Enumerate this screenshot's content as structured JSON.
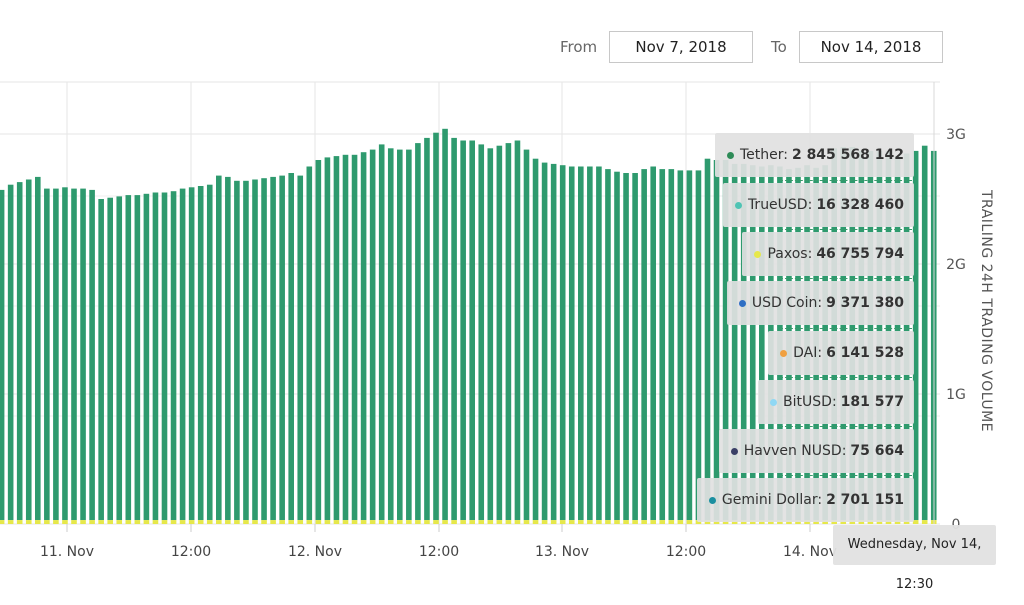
{
  "range": {
    "from_label": "From",
    "from_value": "Nov 7, 2018",
    "to_label": "To",
    "to_value": "Nov 14, 2018"
  },
  "chart_data": {
    "type": "bar",
    "stacked": true,
    "ylabel": "TRAILING 24H TRADING VOLUME",
    "ylim": [
      0,
      3400000000
    ],
    "yticks": [
      {
        "value": 0,
        "label": "0"
      },
      {
        "value": 1000000000,
        "label": "1G"
      },
      {
        "value": 2000000000,
        "label": "2G"
      },
      {
        "value": 3000000000,
        "label": "3G"
      }
    ],
    "xtick_labels": [
      "11. Nov",
      "12:00",
      "12. Nov",
      "12:00",
      "13. Nov",
      "12:00",
      "14. Nov"
    ],
    "colors": {
      "Tether": "#2e9a6e",
      "stablecoins": "#e6e84a"
    },
    "tether_values_billions": [
      2.54,
      2.58,
      2.6,
      2.62,
      2.64,
      2.55,
      2.55,
      2.56,
      2.55,
      2.55,
      2.54,
      2.47,
      2.48,
      2.49,
      2.5,
      2.5,
      2.51,
      2.52,
      2.52,
      2.53,
      2.55,
      2.56,
      2.57,
      2.58,
      2.65,
      2.64,
      2.61,
      2.61,
      2.62,
      2.63,
      2.64,
      2.65,
      2.67,
      2.65,
      2.72,
      2.77,
      2.79,
      2.8,
      2.81,
      2.81,
      2.83,
      2.85,
      2.89,
      2.86,
      2.85,
      2.85,
      2.9,
      2.94,
      2.98,
      3.01,
      2.94,
      2.92,
      2.92,
      2.89,
      2.86,
      2.88,
      2.9,
      2.92,
      2.85,
      2.78,
      2.75,
      2.74,
      2.73,
      2.72,
      2.72,
      2.72,
      2.72,
      2.7,
      2.68,
      2.67,
      2.67,
      2.7,
      2.72,
      2.7,
      2.7,
      2.69,
      2.69,
      2.69,
      2.78,
      2.77,
      2.77,
      2.74,
      2.74,
      2.73,
      2.72,
      2.73,
      2.72,
      2.7,
      2.71,
      2.73,
      2.71,
      2.73,
      2.86,
      2.87,
      2.87,
      2.84,
      2.84,
      2.84,
      2.84,
      2.8,
      2.82,
      2.84,
      2.88,
      2.84
    ],
    "stablecoin_values_billions": [
      0.03,
      0.03,
      0.03,
      0.03,
      0.03,
      0.03,
      0.03,
      0.03,
      0.03,
      0.03,
      0.03,
      0.03,
      0.03,
      0.03,
      0.03,
      0.03,
      0.03,
      0.03,
      0.03,
      0.03,
      0.03,
      0.03,
      0.03,
      0.03,
      0.03,
      0.03,
      0.03,
      0.03,
      0.03,
      0.03,
      0.03,
      0.03,
      0.03,
      0.03,
      0.03,
      0.03,
      0.03,
      0.03,
      0.03,
      0.03,
      0.03,
      0.03,
      0.03,
      0.03,
      0.03,
      0.03,
      0.03,
      0.03,
      0.03,
      0.03,
      0.03,
      0.03,
      0.03,
      0.03,
      0.03,
      0.03,
      0.03,
      0.03,
      0.03,
      0.03,
      0.03,
      0.03,
      0.03,
      0.03,
      0.03,
      0.03,
      0.03,
      0.03,
      0.03,
      0.03,
      0.03,
      0.03,
      0.03,
      0.03,
      0.03,
      0.03,
      0.03,
      0.03,
      0.03,
      0.03,
      0.03,
      0.03,
      0.03,
      0.03,
      0.03,
      0.03,
      0.03,
      0.03,
      0.03,
      0.03,
      0.03,
      0.03,
      0.03,
      0.03,
      0.03,
      0.03,
      0.03,
      0.03,
      0.03,
      0.03,
      0.03,
      0.03,
      0.03,
      0.03
    ]
  },
  "tooltip": {
    "date": "Wednesday, Nov 14, 12:30",
    "entries": [
      {
        "name": "Tether",
        "value": "2 845 568 142",
        "color": "#2e8b57"
      },
      {
        "name": "TrueUSD",
        "value": "16 328 460",
        "color": "#4fc4b4"
      },
      {
        "name": "Paxos",
        "value": "46 755 794",
        "color": "#e6e84a"
      },
      {
        "name": "USD Coin",
        "value": "9 371 380",
        "color": "#2f6fc4"
      },
      {
        "name": "DAI",
        "value": "6 141 528",
        "color": "#f0a040"
      },
      {
        "name": "BitUSD",
        "value": "181 577",
        "color": "#8fd8f4"
      },
      {
        "name": "Havven NUSD",
        "value": "75 664",
        "color": "#3a3f66"
      },
      {
        "name": "Gemini Dollar",
        "value": "2 701 151",
        "color": "#1a8fa0"
      }
    ]
  }
}
